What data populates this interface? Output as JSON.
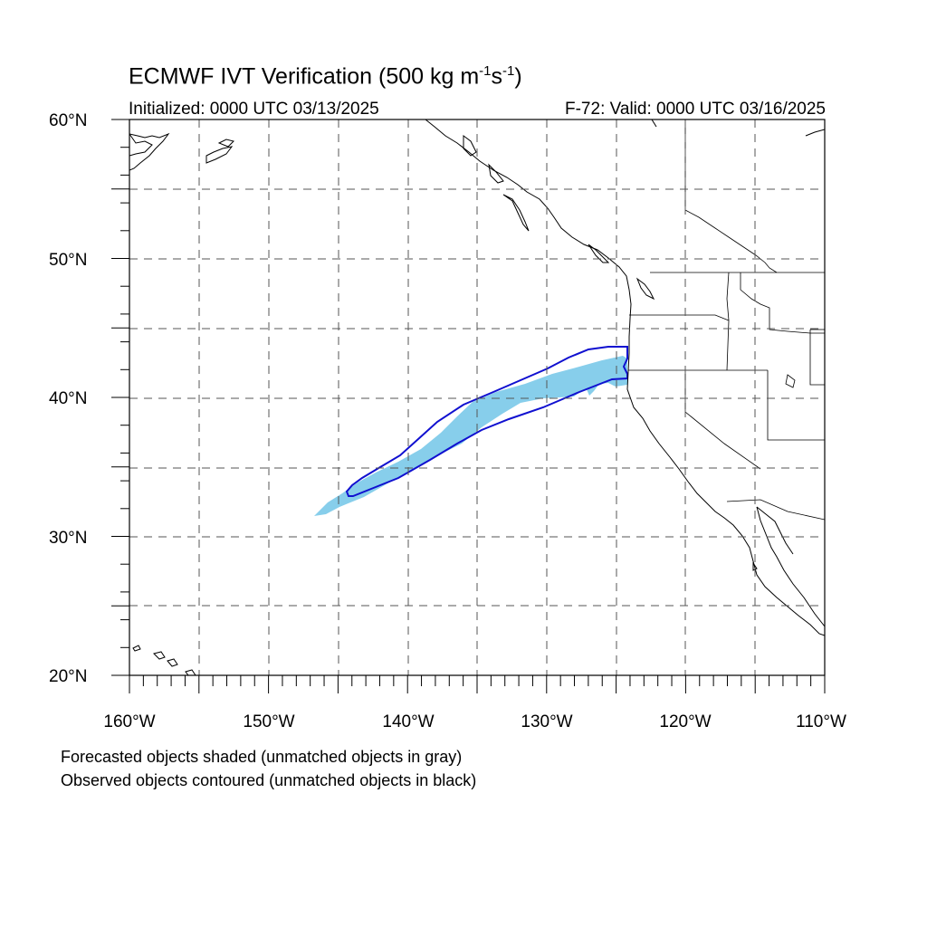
{
  "header": {
    "title_main": "ECMWF IVT Verification (500 kg m",
    "title_sup1": "-1",
    "title_mid": "s",
    "title_sup2": "-1",
    "title_end": ")",
    "initialized": "Initialized: 0000 UTC 03/13/2025",
    "valid": "F-72: Valid: 0000 UTC 03/16/2025"
  },
  "axes": {
    "lat_labels": [
      "60°N",
      "50°N",
      "40°N",
      "30°N",
      "20°N"
    ],
    "lon_labels": [
      "160°W",
      "150°W",
      "140°W",
      "130°W",
      "120°W",
      "110°W"
    ]
  },
  "colors": {
    "forecast_fill": "#87ceeb",
    "observed_contour": "#1010d0",
    "coastline": "#000000",
    "grid": "#555555"
  },
  "legend_notes": {
    "forecast": "Forecasted objects shaded (unmatched objects in gray)",
    "observed": "Observed objects contoured (unmatched objects in black)"
  }
}
